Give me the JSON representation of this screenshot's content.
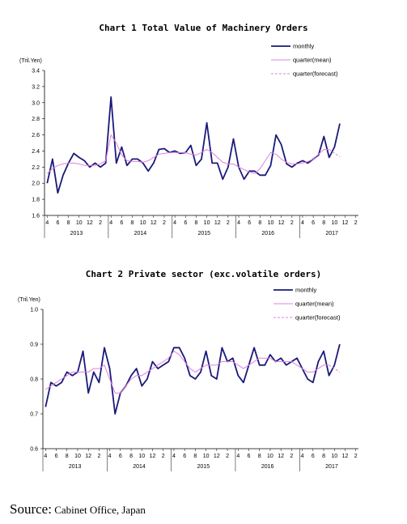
{
  "chart_data": [
    {
      "type": "line",
      "title": "Chart 1 Total Value of Machinery Orders",
      "unit_label": "(Tril.Yen)",
      "ylim": [
        1.6,
        3.4
      ],
      "yticks": [
        "1.6",
        "1.8",
        "2.0",
        "2.2",
        "2.4",
        "2.6",
        "2.8",
        "3.0",
        "3.2",
        "3.4"
      ],
      "month_ticks": [
        "4",
        "6",
        "8",
        "10",
        "12",
        "2",
        "4",
        "6",
        "8",
        "10",
        "12",
        "2",
        "4",
        "6",
        "8",
        "10",
        "12",
        "2",
        "4",
        "6",
        "8",
        "10",
        "12",
        "2",
        "4",
        "6",
        "8",
        "10",
        "12",
        "2"
      ],
      "year_labels": [
        "2013",
        "2014",
        "2015",
        "2016",
        "2017"
      ],
      "legend": [
        "monthly",
        "quarter(mean)",
        "quarter(forecast)"
      ],
      "series": [
        {
          "name": "monthly",
          "color": "#1a1a7a",
          "values": [
            2.0,
            2.3,
            1.88,
            2.1,
            2.25,
            2.37,
            2.32,
            2.28,
            2.2,
            2.25,
            2.2,
            2.25,
            3.07,
            2.25,
            2.45,
            2.22,
            2.3,
            2.3,
            2.25,
            2.15,
            2.25,
            2.42,
            2.43,
            2.38,
            2.4,
            2.37,
            2.38,
            2.47,
            2.22,
            2.3,
            2.75,
            2.25,
            2.25,
            2.05,
            2.2,
            2.55,
            2.2,
            2.05,
            2.15,
            2.15,
            2.1,
            2.1,
            2.22,
            2.6,
            2.48,
            2.24,
            2.2,
            2.25,
            2.28,
            2.25,
            2.3,
            2.35,
            2.58,
            2.32,
            2.45,
            2.74
          ]
        },
        {
          "name": "quarter(mean)",
          "color": "#e080e0",
          "values": [
            2.12,
            2.18,
            2.22,
            2.24,
            2.25,
            2.25,
            2.24,
            2.22,
            2.22,
            2.22,
            2.24,
            2.28,
            2.6,
            2.5,
            2.35,
            2.28,
            2.27,
            2.27,
            2.26,
            2.28,
            2.32,
            2.36,
            2.37,
            2.38,
            2.38,
            2.38,
            2.38,
            2.36,
            2.35,
            2.38,
            2.42,
            2.38,
            2.32,
            2.26,
            2.24,
            2.24,
            2.2,
            2.17,
            2.14,
            2.12,
            2.18,
            2.28,
            2.38,
            2.36,
            2.3,
            2.26,
            2.24,
            2.24,
            2.25,
            2.27,
            2.3,
            2.36,
            2.42,
            2.42,
            null,
            null
          ]
        },
        {
          "name": "quarter(forecast)",
          "color": "#e080e0",
          "values": [
            null,
            null,
            null,
            null,
            null,
            null,
            null,
            null,
            null,
            null,
            null,
            null,
            null,
            null,
            null,
            null,
            null,
            null,
            null,
            null,
            null,
            null,
            null,
            null,
            null,
            null,
            null,
            null,
            null,
            null,
            null,
            null,
            null,
            null,
            null,
            null,
            null,
            null,
            null,
            null,
            null,
            null,
            null,
            null,
            null,
            null,
            null,
            null,
            null,
            null,
            null,
            null,
            null,
            2.42,
            2.37,
            2.33
          ]
        }
      ]
    },
    {
      "type": "line",
      "title": "Chart 2 Private sector (exc.volatile orders)",
      "unit_label": "(Tril.Yen)",
      "ylim": [
        0.6,
        1.0
      ],
      "yticks": [
        "0.6",
        "0.7",
        "0.8",
        "0.9",
        "1.0"
      ],
      "month_ticks": [
        "4",
        "6",
        "8",
        "10",
        "12",
        "2",
        "4",
        "6",
        "8",
        "10",
        "12",
        "2",
        "4",
        "6",
        "8",
        "10",
        "12",
        "2",
        "4",
        "6",
        "8",
        "10",
        "12",
        "2",
        "4",
        "6",
        "8",
        "10",
        "12",
        "2"
      ],
      "year_labels": [
        "2013",
        "2014",
        "2015",
        "2016",
        "2017"
      ],
      "legend": [
        "monthly",
        "quarter(mean)",
        "quarter(forecast)"
      ],
      "series": [
        {
          "name": "monthly",
          "color": "#1a1a7a",
          "values": [
            0.72,
            0.79,
            0.78,
            0.79,
            0.82,
            0.81,
            0.82,
            0.88,
            0.76,
            0.82,
            0.79,
            0.89,
            0.83,
            0.7,
            0.76,
            0.78,
            0.81,
            0.83,
            0.78,
            0.8,
            0.85,
            0.83,
            0.84,
            0.85,
            0.89,
            0.89,
            0.86,
            0.81,
            0.8,
            0.82,
            0.88,
            0.81,
            0.8,
            0.89,
            0.85,
            0.86,
            0.81,
            0.79,
            0.84,
            0.89,
            0.84,
            0.84,
            0.87,
            0.85,
            0.86,
            0.84,
            0.85,
            0.86,
            0.83,
            0.8,
            0.79,
            0.85,
            0.88,
            0.81,
            0.84,
            0.9
          ]
        },
        {
          "name": "quarter(mean)",
          "color": "#e080e0",
          "values": [
            0.77,
            0.78,
            0.79,
            0.8,
            0.81,
            0.82,
            0.82,
            0.82,
            0.82,
            0.83,
            0.83,
            0.84,
            0.8,
            0.76,
            0.76,
            0.78,
            0.8,
            0.81,
            0.81,
            0.82,
            0.83,
            0.84,
            0.85,
            0.86,
            0.88,
            0.87,
            0.85,
            0.83,
            0.82,
            0.83,
            0.84,
            0.84,
            0.84,
            0.85,
            0.85,
            0.85,
            0.84,
            0.83,
            0.84,
            0.85,
            0.86,
            0.86,
            0.86,
            0.85,
            0.85,
            0.85,
            0.85,
            0.84,
            0.83,
            0.82,
            0.82,
            0.83,
            0.84,
            0.84,
            null,
            null
          ]
        },
        {
          "name": "quarter(forecast)",
          "color": "#e080e0",
          "values": [
            null,
            null,
            null,
            null,
            null,
            null,
            null,
            null,
            null,
            null,
            null,
            null,
            null,
            null,
            null,
            null,
            null,
            null,
            null,
            null,
            null,
            null,
            null,
            null,
            null,
            null,
            null,
            null,
            null,
            null,
            null,
            null,
            null,
            null,
            null,
            null,
            null,
            null,
            null,
            null,
            null,
            null,
            null,
            null,
            null,
            null,
            null,
            null,
            null,
            null,
            null,
            null,
            null,
            0.84,
            0.83,
            0.82
          ]
        }
      ]
    }
  ],
  "source": {
    "label": "Source:",
    "text": "Cabinet Office, Japan"
  }
}
